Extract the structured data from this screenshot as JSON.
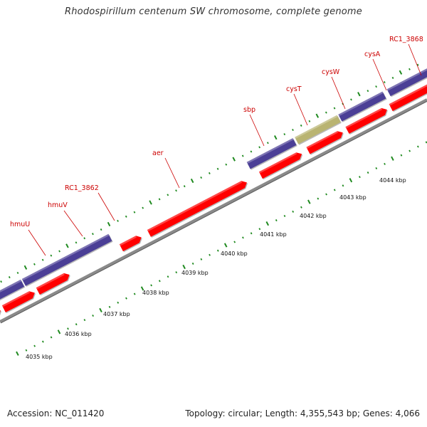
{
  "title": "Rhodospirillum centenum SW chromosome, complete genome",
  "footer": {
    "accession": "Accession: NC_011420",
    "summary": "Topology: circular; Length: 4,355,543 bp; Genes: 4,066"
  },
  "colors": {
    "cds": "#ff0000",
    "rna_track": "#4b3f96",
    "olive_feature": "#b9b472",
    "backbone": "#8a8a8a",
    "tick": "#1f8a1f",
    "label": "#cc0000"
  },
  "scale_labels": [
    "4035 kbp",
    "4036 kbp",
    "4037 kbp",
    "4038 kbp",
    "4039 kbp",
    "4040 kbp",
    "4041 kbp",
    "4042 kbp",
    "4043 kbp",
    "4044 kbp"
  ],
  "gene_labels": [
    "hmuU",
    "hmuV",
    "RC1_3862",
    "aer",
    "sbp",
    "cysT",
    "cysW",
    "cysA",
    "RC1_3868"
  ]
}
